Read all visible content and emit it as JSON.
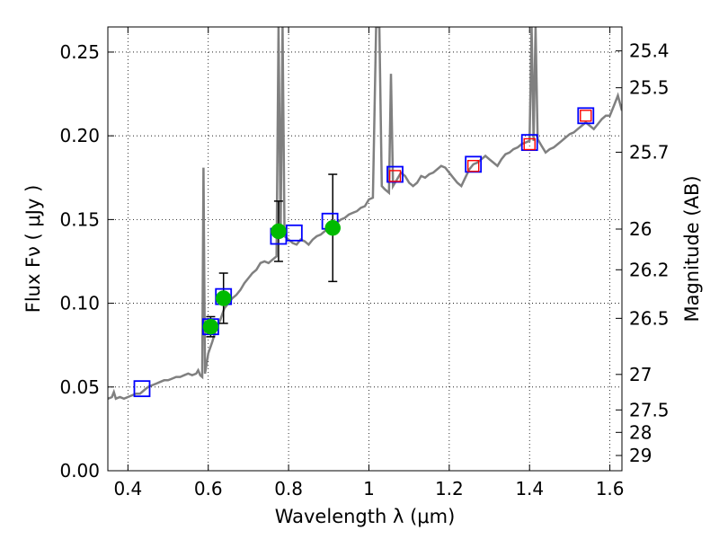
{
  "chart_data": {
    "type": "line",
    "xlabel": "Wavelength  λ (μm)",
    "ylabel": "Flux  Fν  ( μJy )",
    "y2label": "Magnitude (AB)",
    "xlim": [
      0.35,
      1.63
    ],
    "ylim": [
      0.0,
      0.265
    ],
    "grid": true,
    "legend": "none",
    "x_ticks": [
      0.4,
      0.6,
      0.8,
      1.0,
      1.2,
      1.4,
      1.6
    ],
    "x_tick_labels": [
      "0.4",
      "0.6",
      "0.8",
      "1",
      "1.2",
      "1.4",
      "1.6"
    ],
    "y_ticks": [
      0.0,
      0.05,
      0.1,
      0.15,
      0.2,
      0.25
    ],
    "y_tick_labels": [
      "0.00",
      "0.05",
      "0.10",
      "0.15",
      "0.20",
      "0.25"
    ],
    "y2_ticks": [
      {
        "label": "25.4",
        "flux": 0.2507
      },
      {
        "label": "25.5",
        "flux": 0.2287
      },
      {
        "label": "25.7",
        "flux": 0.1902
      },
      {
        "label": "26",
        "flux": 0.1443
      },
      {
        "label": "26.2",
        "flux": 0.12
      },
      {
        "label": "26.5",
        "flux": 0.091
      },
      {
        "label": "27",
        "flux": 0.0575
      },
      {
        "label": "27.5",
        "flux": 0.0363
      },
      {
        "label": "28",
        "flux": 0.0229
      },
      {
        "label": "29",
        "flux": 0.0091
      }
    ],
    "model_spectrum": {
      "color": "#808080",
      "points": [
        [
          0.35,
          0.043
        ],
        [
          0.36,
          0.044
        ],
        [
          0.365,
          0.047
        ],
        [
          0.37,
          0.043
        ],
        [
          0.38,
          0.044
        ],
        [
          0.39,
          0.043
        ],
        [
          0.4,
          0.044
        ],
        [
          0.41,
          0.045
        ],
        [
          0.42,
          0.046
        ],
        [
          0.43,
          0.046
        ],
        [
          0.44,
          0.048
        ],
        [
          0.45,
          0.05
        ],
        [
          0.46,
          0.051
        ],
        [
          0.47,
          0.052
        ],
        [
          0.48,
          0.053
        ],
        [
          0.49,
          0.054
        ],
        [
          0.5,
          0.054
        ],
        [
          0.51,
          0.055
        ],
        [
          0.52,
          0.056
        ],
        [
          0.53,
          0.056
        ],
        [
          0.54,
          0.057
        ],
        [
          0.55,
          0.058
        ],
        [
          0.56,
          0.057
        ],
        [
          0.57,
          0.058
        ],
        [
          0.575,
          0.06
        ],
        [
          0.58,
          0.057
        ],
        [
          0.585,
          0.056
        ],
        [
          0.588,
          0.181
        ],
        [
          0.592,
          0.058
        ],
        [
          0.6,
          0.07
        ],
        [
          0.61,
          0.077
        ],
        [
          0.62,
          0.085
        ],
        [
          0.63,
          0.09
        ],
        [
          0.64,
          0.097
        ],
        [
          0.65,
          0.1
        ],
        [
          0.66,
          0.103
        ],
        [
          0.67,
          0.105
        ],
        [
          0.68,
          0.108
        ],
        [
          0.69,
          0.112
        ],
        [
          0.7,
          0.115
        ],
        [
          0.71,
          0.118
        ],
        [
          0.72,
          0.12
        ],
        [
          0.73,
          0.124
        ],
        [
          0.74,
          0.125
        ],
        [
          0.75,
          0.124
        ],
        [
          0.76,
          0.126
        ],
        [
          0.77,
          0.128
        ],
        [
          0.775,
          0.265
        ],
        [
          0.78,
          0.14
        ],
        [
          0.785,
          0.265
        ],
        [
          0.79,
          0.14
        ],
        [
          0.8,
          0.138
        ],
        [
          0.81,
          0.136
        ],
        [
          0.82,
          0.135
        ],
        [
          0.83,
          0.138
        ],
        [
          0.84,
          0.137
        ],
        [
          0.85,
          0.135
        ],
        [
          0.86,
          0.138
        ],
        [
          0.87,
          0.14
        ],
        [
          0.88,
          0.141
        ],
        [
          0.89,
          0.143
        ],
        [
          0.9,
          0.145
        ],
        [
          0.91,
          0.147
        ],
        [
          0.92,
          0.148
        ],
        [
          0.93,
          0.15
        ],
        [
          0.94,
          0.151
        ],
        [
          0.95,
          0.153
        ],
        [
          0.96,
          0.154
        ],
        [
          0.97,
          0.155
        ],
        [
          0.98,
          0.157
        ],
        [
          0.99,
          0.158
        ],
        [
          1.0,
          0.162
        ],
        [
          1.01,
          0.163
        ],
        [
          1.018,
          0.265
        ],
        [
          1.026,
          0.265
        ],
        [
          1.032,
          0.17
        ],
        [
          1.04,
          0.168
        ],
        [
          1.05,
          0.166
        ],
        [
          1.055,
          0.237
        ],
        [
          1.06,
          0.17
        ],
        [
          1.07,
          0.174
        ],
        [
          1.08,
          0.178
        ],
        [
          1.09,
          0.176
        ],
        [
          1.1,
          0.172
        ],
        [
          1.11,
          0.17
        ],
        [
          1.12,
          0.172
        ],
        [
          1.13,
          0.176
        ],
        [
          1.14,
          0.175
        ],
        [
          1.15,
          0.177
        ],
        [
          1.16,
          0.178
        ],
        [
          1.17,
          0.18
        ],
        [
          1.18,
          0.182
        ],
        [
          1.19,
          0.181
        ],
        [
          1.2,
          0.178
        ],
        [
          1.21,
          0.175
        ],
        [
          1.22,
          0.172
        ],
        [
          1.23,
          0.17
        ],
        [
          1.24,
          0.175
        ],
        [
          1.25,
          0.18
        ],
        [
          1.26,
          0.183
        ],
        [
          1.27,
          0.184
        ],
        [
          1.28,
          0.186
        ],
        [
          1.29,
          0.188
        ],
        [
          1.3,
          0.186
        ],
        [
          1.31,
          0.184
        ],
        [
          1.32,
          0.182
        ],
        [
          1.33,
          0.186
        ],
        [
          1.34,
          0.189
        ],
        [
          1.35,
          0.19
        ],
        [
          1.36,
          0.192
        ],
        [
          1.37,
          0.193
        ],
        [
          1.38,
          0.195
        ],
        [
          1.39,
          0.196
        ],
        [
          1.4,
          0.197
        ],
        [
          1.405,
          0.265
        ],
        [
          1.41,
          0.197
        ],
        [
          1.415,
          0.265
        ],
        [
          1.42,
          0.198
        ],
        [
          1.43,
          0.194
        ],
        [
          1.44,
          0.19
        ],
        [
          1.45,
          0.192
        ],
        [
          1.46,
          0.193
        ],
        [
          1.47,
          0.195
        ],
        [
          1.48,
          0.197
        ],
        [
          1.49,
          0.199
        ],
        [
          1.5,
          0.201
        ],
        [
          1.51,
          0.202
        ],
        [
          1.52,
          0.204
        ],
        [
          1.53,
          0.206
        ],
        [
          1.54,
          0.208
        ],
        [
          1.55,
          0.206
        ],
        [
          1.56,
          0.204
        ],
        [
          1.57,
          0.207
        ],
        [
          1.58,
          0.21
        ],
        [
          1.59,
          0.212
        ],
        [
          1.6,
          0.212
        ],
        [
          1.61,
          0.218
        ],
        [
          1.62,
          0.224
        ],
        [
          1.63,
          0.215
        ]
      ]
    },
    "model_photometry_blue": {
      "color": "#0000ff",
      "x": [
        0.435,
        0.606,
        0.638,
        0.775,
        0.814,
        0.903,
        1.065,
        1.26,
        1.4,
        1.54
      ],
      "y": [
        0.049,
        0.086,
        0.104,
        0.14,
        0.142,
        0.149,
        0.177,
        0.183,
        0.196,
        0.212
      ]
    },
    "model_photometry_red": {
      "color": "#ff0000",
      "x": [
        1.065,
        1.26,
        1.4,
        1.54
      ],
      "y": [
        0.176,
        0.182,
        0.195,
        0.212
      ]
    },
    "observed_photometry": {
      "color": "#00bb00",
      "x": [
        0.606,
        0.638,
        0.775,
        0.91
      ],
      "y": [
        0.086,
        0.103,
        0.143,
        0.145
      ],
      "yerr": [
        0.006,
        0.015,
        0.018,
        0.032
      ]
    }
  }
}
